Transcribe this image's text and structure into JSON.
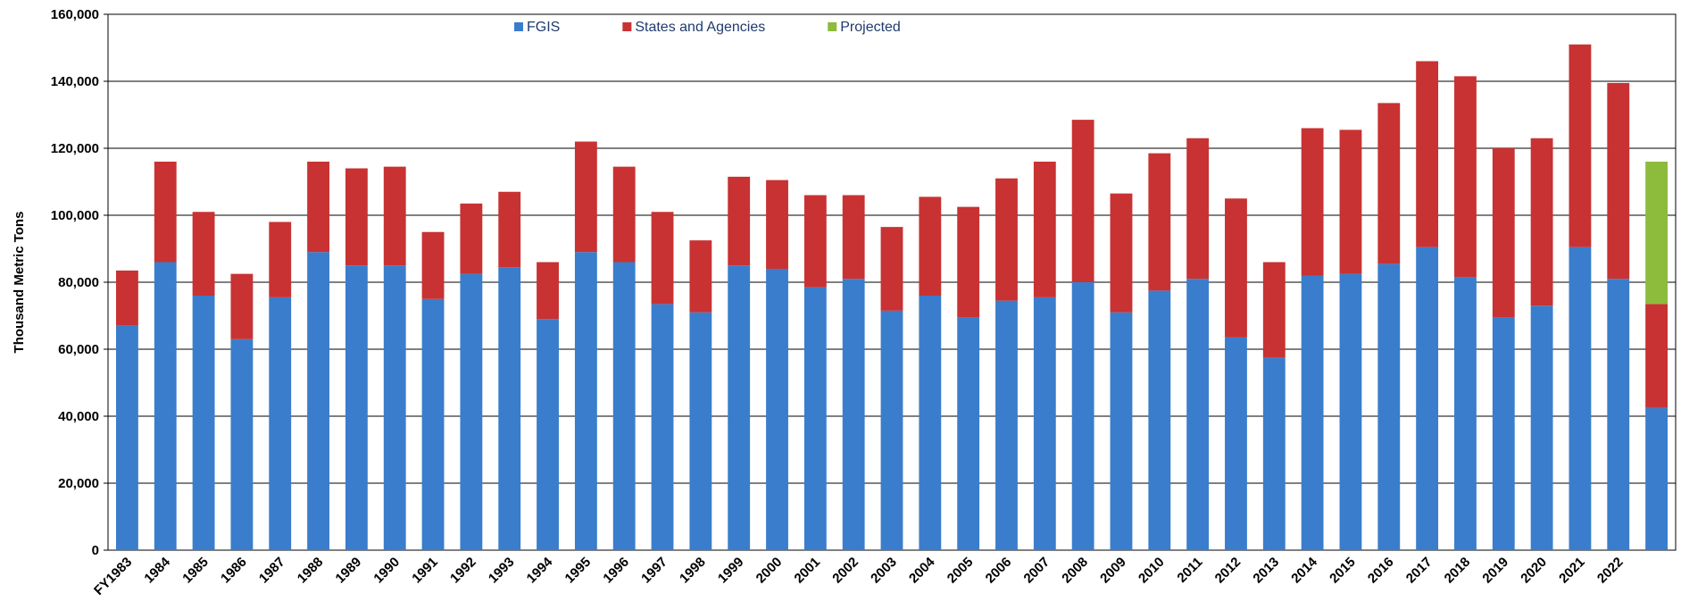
{
  "chart_data": {
    "type": "stacked_bar",
    "y_label": "Thousand Metric Tons",
    "categories": [
      "FY1983",
      "1984",
      "1985",
      "1986",
      "1987",
      "1988",
      "1989",
      "1990",
      "1991",
      "1992",
      "1993",
      "1994",
      "1995",
      "1996",
      "1997",
      "1998",
      "1999",
      "2000",
      "2001",
      "2002",
      "2003",
      "2004",
      "2005",
      "2006",
      "2007",
      "2008",
      "2009",
      "2010",
      "2011",
      "2012",
      "2013",
      "2014",
      "2015",
      "2016",
      "2017",
      "2018",
      "2019",
      "2020",
      "2021",
      "2022",
      null
    ],
    "series": [
      {
        "name": "FGIS",
        "color": "#3a7dcc",
        "values": [
          67000,
          86000,
          76000,
          63000,
          75500,
          89000,
          85000,
          85000,
          75000,
          82500,
          84500,
          69000,
          89000,
          86000,
          73500,
          71000,
          85000,
          84000,
          78500,
          81000,
          71500,
          76000,
          69500,
          74500,
          75500,
          80000,
          71000,
          77500,
          81000,
          63500,
          57500,
          82000,
          82500,
          85500,
          90500,
          81500,
          69500,
          73000,
          90500,
          81000,
          42500
        ]
      },
      {
        "name": "States and Agencies",
        "color": "#c83232",
        "values": [
          16500,
          30000,
          25000,
          19500,
          22500,
          27000,
          29000,
          29500,
          20000,
          21000,
          22500,
          17000,
          33000,
          28500,
          27500,
          21500,
          26500,
          26500,
          27500,
          25000,
          25000,
          29500,
          33000,
          36500,
          40500,
          48500,
          35500,
          41000,
          42000,
          41500,
          28500,
          44000,
          43000,
          48000,
          55500,
          60000,
          50500,
          50000,
          60500,
          58500,
          31000
        ]
      },
      {
        "name": "Projected",
        "color": "#8dbb3c",
        "values": [
          null,
          null,
          null,
          null,
          null,
          null,
          null,
          null,
          null,
          null,
          null,
          null,
          null,
          null,
          null,
          null,
          null,
          null,
          null,
          null,
          null,
          null,
          null,
          null,
          null,
          null,
          null,
          null,
          null,
          null,
          null,
          null,
          null,
          null,
          null,
          null,
          null,
          null,
          null,
          null,
          42500
        ]
      }
    ],
    "ylim": [
      0,
      160000
    ],
    "yticks": [
      0,
      {
        "value": 20000,
        "label": "20,000"
      },
      {
        "value": 40000,
        "label": "40,000"
      },
      {
        "value": 60000,
        "label": "60,000"
      },
      {
        "value": 80000,
        "label": "80,000"
      },
      {
        "value": 100000,
        "label": "100,000"
      },
      {
        "value": 120000,
        "label": "120,000"
      },
      {
        "value": 140000,
        "label": "140,000"
      },
      {
        "value": 160000,
        "label": "160,000"
      }
    ],
    "grid": true
  }
}
